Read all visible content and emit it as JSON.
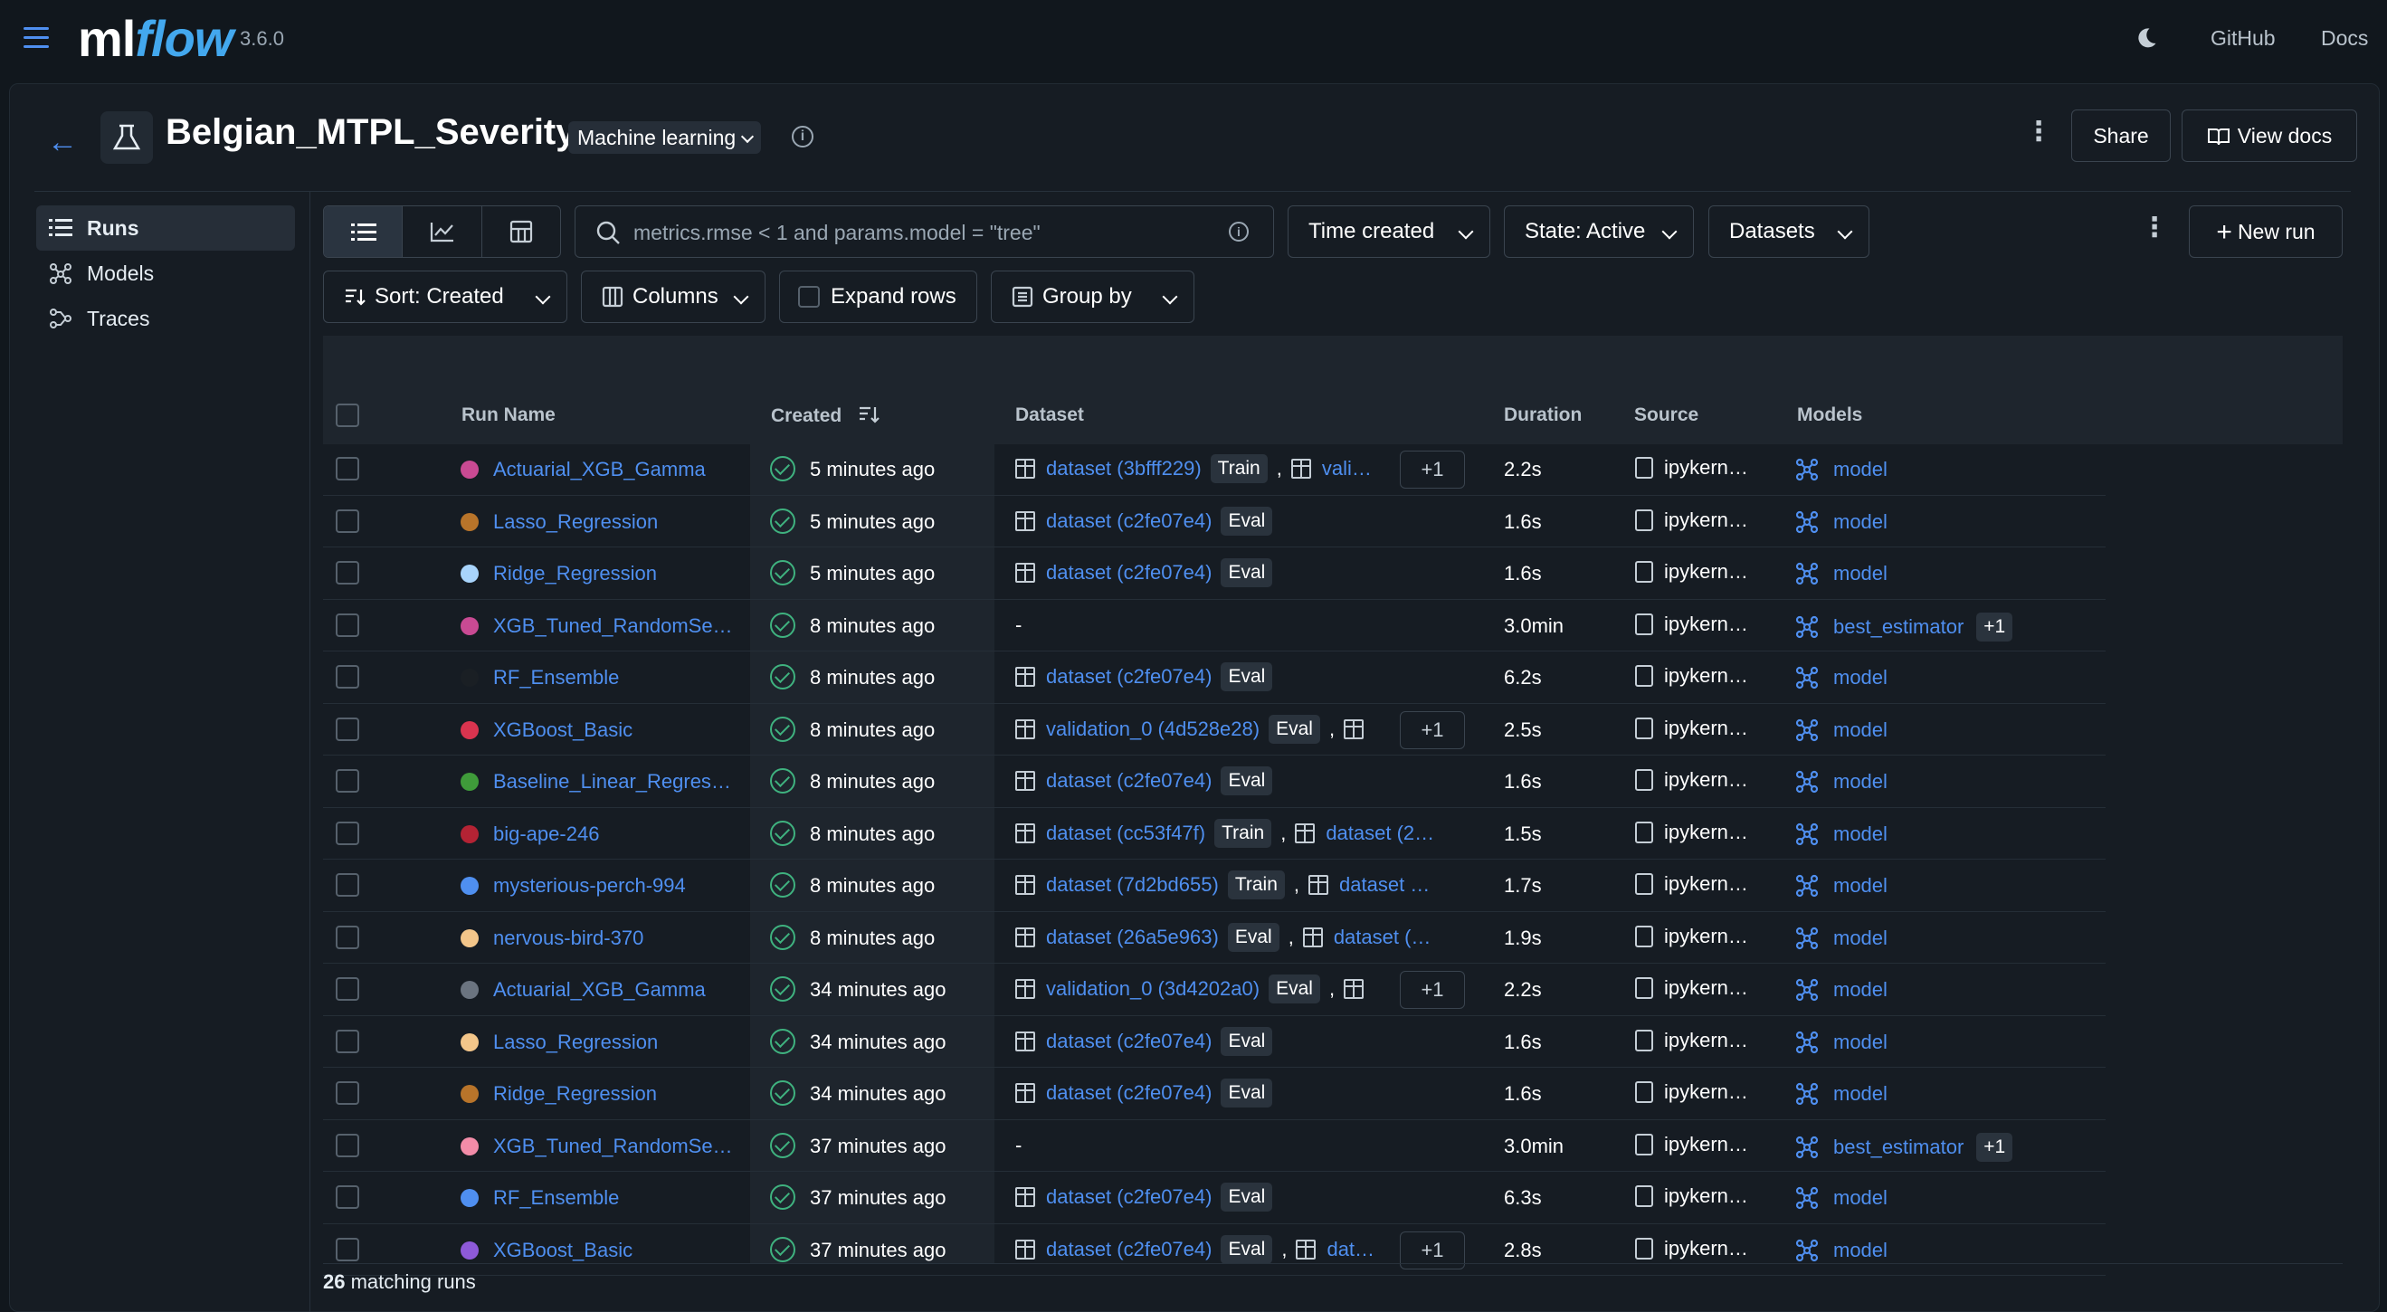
{
  "app": {
    "logo_ml": "ml",
    "logo_flow": "flow",
    "version": "3.6.0"
  },
  "topnav": {
    "github": "GitHub",
    "docs": "Docs"
  },
  "experiment": {
    "title": "Belgian_MTPL_Severity",
    "type_label": "Machine learning",
    "share": "Share",
    "view_docs": "View docs"
  },
  "sidebar": {
    "items": [
      {
        "label": "Runs"
      },
      {
        "label": "Models"
      },
      {
        "label": "Traces"
      }
    ]
  },
  "toolbar": {
    "search_placeholder": "metrics.rmse < 1 and params.model = \"tree\"",
    "time_created": "Time created",
    "state": "State: Active",
    "datasets": "Datasets",
    "new_run": "New run",
    "sort": "Sort: Created",
    "columns": "Columns",
    "expand_rows": "Expand rows",
    "group_by": "Group by"
  },
  "table": {
    "headers": {
      "run_name": "Run Name",
      "created": "Created",
      "dataset": "Dataset",
      "duration": "Duration",
      "source": "Source",
      "models": "Models"
    },
    "rows": [
      {
        "name": "Actuarial_XGB_Gamma",
        "color": "#c94a93",
        "created": "5 minutes ago",
        "dataset": "dataset (3bfff229)",
        "tag": "Train",
        "extra": "vali…",
        "plus": "+1",
        "duration": "2.2s",
        "source": "ipykern…",
        "model": "model",
        "model_plus": ""
      },
      {
        "name": "Lasso_Regression",
        "color": "#b8742a",
        "created": "5 minutes ago",
        "dataset": "dataset (c2fe07e4)",
        "tag": "Eval",
        "extra": "",
        "plus": "",
        "duration": "1.6s",
        "source": "ipykern…",
        "model": "model",
        "model_plus": ""
      },
      {
        "name": "Ridge_Regression",
        "color": "#a8d4fb",
        "created": "5 minutes ago",
        "dataset": "dataset (c2fe07e4)",
        "tag": "Eval",
        "extra": "",
        "plus": "",
        "duration": "1.6s",
        "source": "ipykern…",
        "model": "model",
        "model_plus": ""
      },
      {
        "name": "XGB_Tuned_RandomSe…",
        "color": "#c94a93",
        "created": "8 minutes ago",
        "dataset": "-",
        "tag": "",
        "extra": "",
        "plus": "",
        "duration": "3.0min",
        "source": "ipykern…",
        "model": "best_estimator",
        "model_plus": "+1"
      },
      {
        "name": "RF_Ensemble",
        "color": "#1a1f24",
        "created": "8 minutes ago",
        "dataset": "dataset (c2fe07e4)",
        "tag": "Eval",
        "extra": "",
        "plus": "",
        "duration": "6.2s",
        "source": "ipykern…",
        "model": "model",
        "model_plus": ""
      },
      {
        "name": "XGBoost_Basic",
        "color": "#d9344f",
        "created": "8 minutes ago",
        "dataset": "validation_0 (4d528e28)",
        "tag": "Eval",
        "extra": "",
        "plus": "+1",
        "duration": "2.5s",
        "source": "ipykern…",
        "model": "model",
        "model_plus": ""
      },
      {
        "name": "Baseline_Linear_Regres…",
        "color": "#3f9b3a",
        "created": "8 minutes ago",
        "dataset": "dataset (c2fe07e4)",
        "tag": "Eval",
        "extra": "",
        "plus": "",
        "duration": "1.6s",
        "source": "ipykern…",
        "model": "model",
        "model_plus": ""
      },
      {
        "name": "big-ape-246",
        "color": "#b42334",
        "created": "8 minutes ago",
        "dataset": "dataset (cc53f47f)",
        "tag": "Train",
        "extra": "dataset (2…",
        "plus": "",
        "duration": "1.5s",
        "source": "ipykern…",
        "model": "model",
        "model_plus": ""
      },
      {
        "name": "mysterious-perch-994",
        "color": "#4f8ff0",
        "created": "8 minutes ago",
        "dataset": "dataset (7d2bd655)",
        "tag": "Train",
        "extra": "dataset …",
        "plus": "",
        "duration": "1.7s",
        "source": "ipykern…",
        "model": "model",
        "model_plus": ""
      },
      {
        "name": "nervous-bird-370",
        "color": "#f3c68a",
        "created": "8 minutes ago",
        "dataset": "dataset (26a5e963)",
        "tag": "Eval",
        "extra": "dataset (…",
        "plus": "",
        "duration": "1.9s",
        "source": "ipykern…",
        "model": "model",
        "model_plus": ""
      },
      {
        "name": "Actuarial_XGB_Gamma",
        "color": "#6b7480",
        "created": "34 minutes ago",
        "dataset": "validation_0 (3d4202a0)",
        "tag": "Eval",
        "extra": "",
        "plus": "+1",
        "duration": "2.2s",
        "source": "ipykern…",
        "model": "model",
        "model_plus": ""
      },
      {
        "name": "Lasso_Regression",
        "color": "#f3c68a",
        "created": "34 minutes ago",
        "dataset": "dataset (c2fe07e4)",
        "tag": "Eval",
        "extra": "",
        "plus": "",
        "duration": "1.6s",
        "source": "ipykern…",
        "model": "model",
        "model_plus": ""
      },
      {
        "name": "Ridge_Regression",
        "color": "#b8742a",
        "created": "34 minutes ago",
        "dataset": "dataset (c2fe07e4)",
        "tag": "Eval",
        "extra": "",
        "plus": "",
        "duration": "1.6s",
        "source": "ipykern…",
        "model": "model",
        "model_plus": ""
      },
      {
        "name": "XGB_Tuned_RandomSe…",
        "color": "#f28ca8",
        "created": "37 minutes ago",
        "dataset": "-",
        "tag": "",
        "extra": "",
        "plus": "",
        "duration": "3.0min",
        "source": "ipykern…",
        "model": "best_estimator",
        "model_plus": "+1"
      },
      {
        "name": "RF_Ensemble",
        "color": "#4f8ff0",
        "created": "37 minutes ago",
        "dataset": "dataset (c2fe07e4)",
        "tag": "Eval",
        "extra": "",
        "plus": "",
        "duration": "6.3s",
        "source": "ipykern…",
        "model": "model",
        "model_plus": ""
      },
      {
        "name": "XGBoost_Basic",
        "color": "#8e5ad9",
        "created": "37 minutes ago",
        "dataset": "dataset (c2fe07e4)",
        "tag": "Eval",
        "extra": "dat…",
        "plus": "+1",
        "duration": "2.8s",
        "source": "ipykern…",
        "model": "model",
        "model_plus": ""
      }
    ]
  },
  "footer": {
    "count": "26",
    "label": "matching runs"
  }
}
